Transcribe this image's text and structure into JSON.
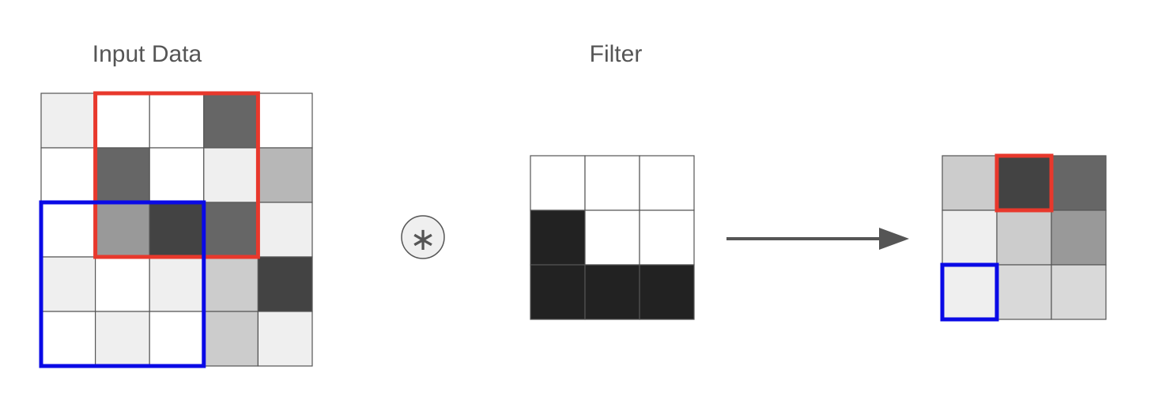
{
  "titles": {
    "input": "Input Data",
    "filter": "Filter"
  },
  "operator_symbol": "∗",
  "colors": {
    "grid_line": "#555555",
    "red_window": "#e8382c",
    "blue_window": "#0a0ae6",
    "arrow": "#555555"
  },
  "input_grid": [
    [
      "#efefef",
      "#ffffff",
      "#ffffff",
      "#666666",
      "#ffffff"
    ],
    [
      "#ffffff",
      "#666666",
      "#ffffff",
      "#efefef",
      "#b7b7b7"
    ],
    [
      "#ffffff",
      "#999999",
      "#434343",
      "#666666",
      "#efefef"
    ],
    [
      "#efefef",
      "#ffffff",
      "#efefef",
      "#cccccc",
      "#434343"
    ],
    [
      "#ffffff",
      "#efefef",
      "#ffffff",
      "#cccccc",
      "#efefef"
    ]
  ],
  "filter_grid": [
    [
      "#ffffff",
      "#ffffff",
      "#ffffff"
    ],
    [
      "#222222",
      "#ffffff",
      "#ffffff"
    ],
    [
      "#222222",
      "#222222",
      "#222222"
    ]
  ],
  "output_grid": [
    [
      "#cccccc",
      "#434343",
      "#666666"
    ],
    [
      "#efefef",
      "#cccccc",
      "#999999"
    ],
    [
      "#efefef",
      "#d9d9d9",
      "#d9d9d9"
    ]
  ],
  "windows": {
    "red": {
      "row": 0,
      "col": 1,
      "size": 3,
      "output_row": 0,
      "output_col": 1
    },
    "blue": {
      "row": 2,
      "col": 0,
      "size": 3,
      "output_row": 2,
      "output_col": 0
    }
  }
}
